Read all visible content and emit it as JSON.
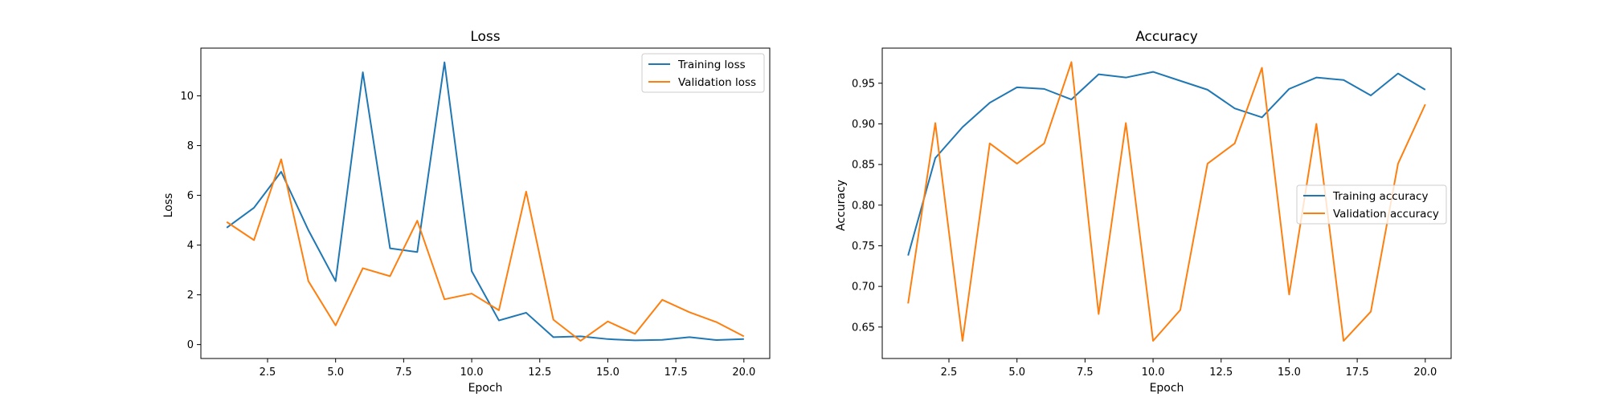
{
  "chart_data": [
    {
      "type": "line",
      "title": "Loss",
      "xlabel": "Epoch",
      "ylabel": "Loss",
      "xlim": [
        0.05,
        20.95
      ],
      "ylim": [
        -0.56,
        11.92
      ],
      "xticks": [
        2.5,
        5.0,
        7.5,
        10.0,
        12.5,
        15.0,
        17.5,
        20.0
      ],
      "xtick_labels": [
        "2.5",
        "5.0",
        "7.5",
        "10.0",
        "12.5",
        "15.0",
        "17.5",
        "20.0"
      ],
      "yticks": [
        0,
        2,
        4,
        6,
        8,
        10
      ],
      "ytick_labels": [
        "0",
        "2",
        "4",
        "6",
        "8",
        "10"
      ],
      "legend_position": "top-right",
      "grid": false,
      "x": [
        1,
        2,
        3,
        4,
        5,
        6,
        7,
        8,
        9,
        10,
        11,
        12,
        13,
        14,
        15,
        16,
        17,
        18,
        19,
        20
      ],
      "series": [
        {
          "name": "Training loss",
          "color": "#1f77b4",
          "values": [
            4.7,
            5.5,
            6.95,
            4.6,
            2.55,
            10.95,
            3.87,
            3.72,
            11.35,
            2.95,
            0.97,
            1.28,
            0.3,
            0.33,
            0.22,
            0.17,
            0.19,
            0.3,
            0.18,
            0.22
          ]
        },
        {
          "name": "Validation loss",
          "color": "#ff7f0e",
          "values": [
            4.93,
            4.2,
            7.45,
            2.55,
            0.77,
            3.07,
            2.75,
            4.98,
            1.82,
            2.05,
            1.38,
            6.15,
            1.0,
            0.15,
            0.93,
            0.43,
            1.8,
            1.3,
            0.9,
            0.33
          ]
        }
      ]
    },
    {
      "type": "line",
      "title": "Accuracy",
      "xlabel": "Epoch",
      "ylabel": "Accuracy",
      "xlim": [
        0.05,
        20.95
      ],
      "ylim": [
        0.6113,
        0.9932
      ],
      "xticks": [
        2.5,
        5.0,
        7.5,
        10.0,
        12.5,
        15.0,
        17.5,
        20.0
      ],
      "xtick_labels": [
        "2.5",
        "5.0",
        "7.5",
        "10.0",
        "12.5",
        "15.0",
        "17.5",
        "20.0"
      ],
      "yticks": [
        0.65,
        0.7,
        0.75,
        0.8,
        0.85,
        0.9,
        0.95
      ],
      "ytick_labels": [
        "0.65",
        "0.70",
        "0.75",
        "0.80",
        "0.85",
        "0.90",
        "0.95"
      ],
      "legend_position": "center-right",
      "grid": false,
      "x": [
        1,
        2,
        3,
        4,
        5,
        6,
        7,
        8,
        9,
        10,
        11,
        12,
        13,
        14,
        15,
        16,
        17,
        18,
        19,
        20
      ],
      "series": [
        {
          "name": "Training accuracy",
          "color": "#1f77b4",
          "values": [
            0.738,
            0.858,
            0.896,
            0.926,
            0.945,
            0.943,
            0.93,
            0.961,
            0.957,
            0.964,
            0.953,
            0.942,
            0.919,
            0.908,
            0.943,
            0.957,
            0.954,
            0.935,
            0.962,
            0.942
          ]
        },
        {
          "name": "Validation accuracy",
          "color": "#ff7f0e",
          "values": [
            0.679,
            0.901,
            0.633,
            0.876,
            0.851,
            0.876,
            0.976,
            0.666,
            0.901,
            0.633,
            0.671,
            0.851,
            0.876,
            0.969,
            0.69,
            0.9,
            0.633,
            0.669,
            0.851,
            0.924
          ]
        }
      ]
    }
  ]
}
